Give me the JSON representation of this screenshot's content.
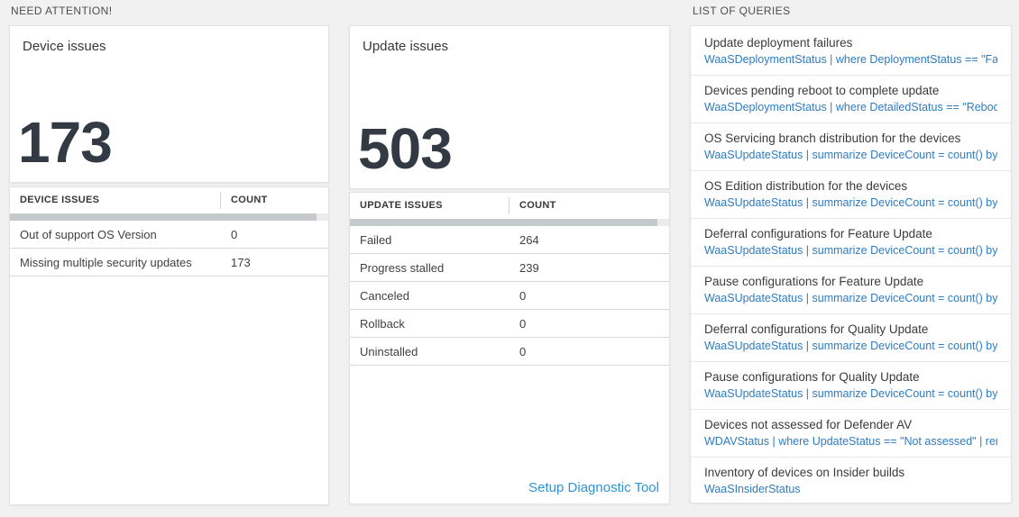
{
  "colors": {
    "page_bg": "#f1f1f1",
    "card_bg": "#ffffff",
    "accent_link": "#2f94d6",
    "query_code_blue": "#2e7cc1",
    "big_number": "#333a44",
    "scrollbar_thumb": "#c6c9cc"
  },
  "need_attention": {
    "label": "NEED ATTENTION!",
    "device_card": {
      "title": "Device issues",
      "count": "173"
    },
    "device_table": {
      "headers": [
        "DEVICE ISSUES",
        "COUNT"
      ],
      "rows": [
        [
          "Out of support OS Version",
          "0"
        ],
        [
          "Missing multiple security updates",
          "173"
        ]
      ]
    },
    "update_card": {
      "title": "Update issues",
      "count": "503"
    },
    "update_table": {
      "headers": [
        "UPDATE ISSUES",
        "COUNT"
      ],
      "rows": [
        [
          "Failed",
          "264"
        ],
        [
          "Progress stalled",
          "239"
        ],
        [
          "Canceled",
          "0"
        ],
        [
          "Rollback",
          "0"
        ],
        [
          "Uninstalled",
          "0"
        ]
      ],
      "footer_link": "Setup Diagnostic Tool"
    }
  },
  "queries": {
    "label": "LIST OF QUERIES",
    "items": [
      {
        "name": "Update deployment failures",
        "query": "WaaSDeploymentStatus | where DeploymentStatus == \"Failed\" |…"
      },
      {
        "name": "Devices pending reboot to complete update",
        "query": "WaaSDeploymentStatus | where DetailedStatus == \"Reboot pend…"
      },
      {
        "name": "OS Servicing branch distribution for the devices",
        "query": "WaaSUpdateStatus | summarize DeviceCount = count() by OSSer…"
      },
      {
        "name": "OS Edition distribution for the devices",
        "query": "WaaSUpdateStatus | summarize DeviceCount = count() by OSEdit…"
      },
      {
        "name": "Deferral configurations for Feature Update",
        "query": "WaaSUpdateStatus | summarize DeviceCount = count() by Featur…"
      },
      {
        "name": "Pause configurations for Feature Update",
        "query": "WaaSUpdateStatus | summarize DeviceCount = count() by Featur…"
      },
      {
        "name": "Deferral configurations for Quality Update",
        "query": "WaaSUpdateStatus | summarize DeviceCount = count() by Qualit…"
      },
      {
        "name": "Pause configurations for Quality Update",
        "query": "WaaSUpdateStatus | summarize DeviceCount = count() by Qualit…"
      },
      {
        "name": "Devices not assessed for Defender AV",
        "query": "WDAVStatus | where UpdateStatus == \"Not assessed\" | render ta…"
      },
      {
        "name": "Inventory of devices on Insider builds",
        "query": "WaaSInsiderStatus"
      }
    ]
  }
}
